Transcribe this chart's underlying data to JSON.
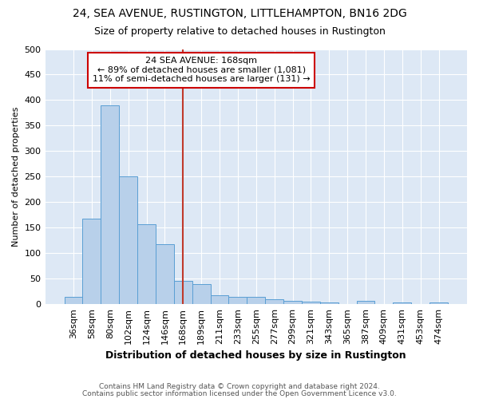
{
  "title": "24, SEA AVENUE, RUSTINGTON, LITTLEHAMPTON, BN16 2DG",
  "subtitle": "Size of property relative to detached houses in Rustington",
  "xlabel": "Distribution of detached houses by size in Rustington",
  "ylabel": "Number of detached properties",
  "footnote1": "Contains HM Land Registry data © Crown copyright and database right 2024.",
  "footnote2": "Contains public sector information licensed under the Open Government Licence v3.0.",
  "bar_labels": [
    "36sqm",
    "58sqm",
    "80sqm",
    "102sqm",
    "124sqm",
    "146sqm",
    "168sqm",
    "189sqm",
    "211sqm",
    "233sqm",
    "255sqm",
    "277sqm",
    "299sqm",
    "321sqm",
    "343sqm",
    "365sqm",
    "387sqm",
    "409sqm",
    "431sqm",
    "453sqm",
    "474sqm"
  ],
  "bar_values": [
    14,
    167,
    390,
    250,
    157,
    117,
    45,
    40,
    18,
    15,
    15,
    10,
    6,
    5,
    3,
    0,
    6,
    0,
    3,
    0,
    4
  ],
  "bar_color": "#b8d0ea",
  "bar_edge_color": "#5a9fd4",
  "fig_bg_color": "#ffffff",
  "plot_bg_color": "#dde8f5",
  "grid_color": "#ffffff",
  "vline_index": 6,
  "vline_color": "#c0392b",
  "annotation_line1": "24 SEA AVENUE: 168sqm",
  "annotation_line2": "← 89% of detached houses are smaller (1,081)",
  "annotation_line3": "11% of semi-detached houses are larger (131) →",
  "annotation_box_color": "#ffffff",
  "annotation_box_edge": "#cc0000",
  "ylim": [
    0,
    500
  ],
  "yticks": [
    0,
    50,
    100,
    150,
    200,
    250,
    300,
    350,
    400,
    450,
    500
  ]
}
